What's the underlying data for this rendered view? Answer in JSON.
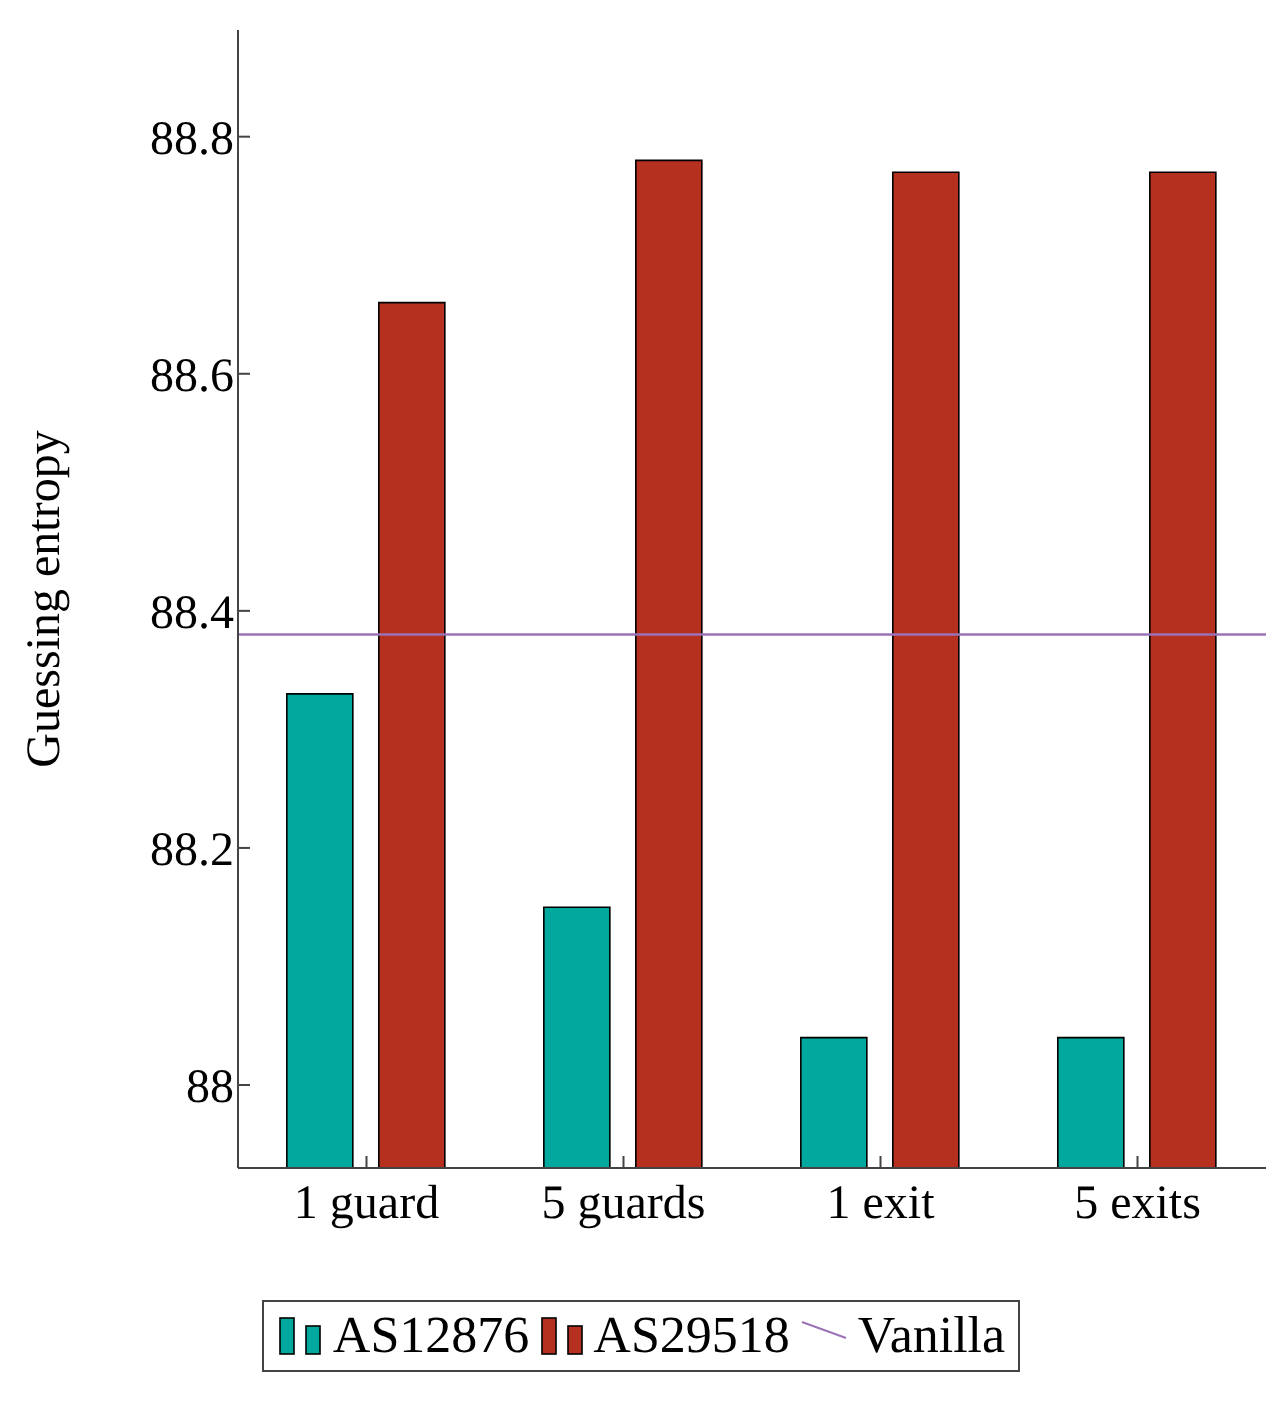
{
  "chart_data": {
    "type": "bar",
    "ylabel": "Guessing entropy",
    "categories": [
      "1 guard",
      "5 guards",
      "1 exit",
      "5 exits"
    ],
    "series": [
      {
        "name": "AS12876",
        "color": "#00a89d",
        "values": [
          88.33,
          88.15,
          88.04,
          88.04
        ]
      },
      {
        "name": "AS29518",
        "color": "#b5301e",
        "values": [
          88.66,
          88.78,
          88.77,
          88.77
        ]
      }
    ],
    "ylim": [
      87.93,
      88.89
    ],
    "yticks": [
      88,
      88.2,
      88.4,
      88.6,
      88.8
    ],
    "legend": "bottom",
    "ref_lines": [
      {
        "axis": "y",
        "value": 88.38,
        "label": "Vanilla",
        "color": "#9b72b5"
      }
    ]
  }
}
